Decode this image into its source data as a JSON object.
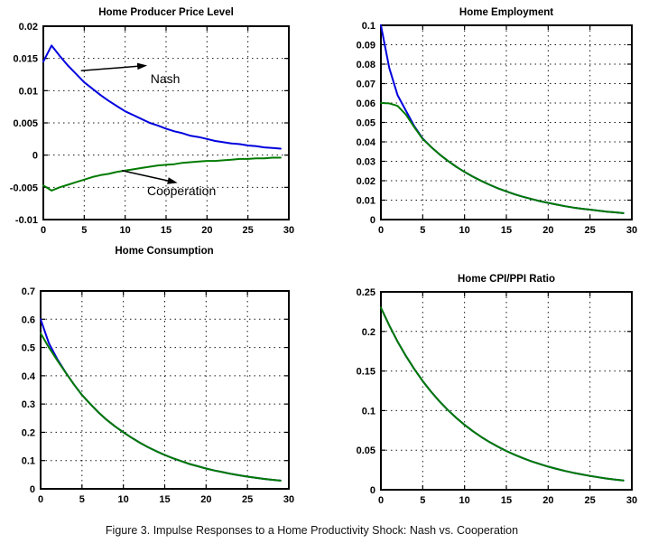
{
  "caption": "Figure 3. Impulse Responses to a Home Productivity Shock: Nash vs. Cooperation",
  "colors": {
    "nash": "#0000dd",
    "cooperation": "#007a00",
    "axis": "#000000"
  },
  "chart_data": [
    {
      "type": "line",
      "title": "Home Producer Price Level",
      "xlabel": "",
      "ylabel": "",
      "xlim": [
        0,
        30
      ],
      "ylim": [
        -0.01,
        0.02
      ],
      "xticks": [
        0,
        5,
        10,
        15,
        20,
        25,
        30
      ],
      "yticks": [
        0.02,
        0.015,
        0.01,
        0.005,
        0,
        -0.005,
        -0.01
      ],
      "grid": true,
      "legend": null,
      "x_start": 0,
      "x_step": 1,
      "series": [
        {
          "name": "Nash",
          "color": "#0000dd",
          "values": [
            0.0145,
            0.017,
            0.0154,
            0.0139,
            0.0126,
            0.0113,
            0.0103,
            0.0093,
            0.0084,
            0.0076,
            0.0068,
            0.0062,
            0.0056,
            0.005,
            0.0046,
            0.0041,
            0.0037,
            0.0034,
            0.003,
            0.0028,
            0.0025,
            0.0022,
            0.002,
            0.0018,
            0.0017,
            0.0015,
            0.0014,
            0.0012,
            0.0011,
            0.001
          ]
        },
        {
          "name": "Cooperation",
          "color": "#007a00",
          "values": [
            -0.0047,
            -0.0055,
            -0.005,
            -0.0046,
            -0.0042,
            -0.0038,
            -0.0034,
            -0.0031,
            -0.0029,
            -0.0026,
            -0.0024,
            -0.0022,
            -0.002,
            -0.0018,
            -0.0016,
            -0.0015,
            -0.0014,
            -0.0012,
            -0.0011,
            -0.001,
            -0.0009,
            -0.0009,
            -0.0008,
            -0.0007,
            -0.0006,
            -0.0006,
            -0.0005,
            -0.0005,
            -0.0004,
            -0.0004
          ]
        }
      ],
      "annotations": [
        {
          "label": "Nash",
          "arrow_tail": {
            "x": 4.6,
            "y": 0.0131
          },
          "arrow_head": {
            "x": 12.7,
            "y": 0.0139
          },
          "label_pos": {
            "x": 13.1,
            "y": 0.0128
          }
        },
        {
          "label": "Cooperation",
          "arrow_tail": {
            "x": 9.6,
            "y": -0.0024
          },
          "arrow_head": {
            "x": 16.4,
            "y": -0.0043
          },
          "label_pos": {
            "x": 12.68,
            "y": -0.00453
          }
        }
      ]
    },
    {
      "type": "line",
      "title": "Home Employment",
      "xlabel": "",
      "ylabel": "",
      "xlim": [
        0,
        30
      ],
      "ylim": [
        0,
        0.1
      ],
      "xticks": [
        0,
        5,
        10,
        15,
        20,
        25,
        30
      ],
      "yticks": [
        0.1,
        0.09,
        0.08,
        0.07,
        0.06,
        0.05,
        0.04,
        0.03,
        0.02,
        0.01,
        0
      ],
      "grid": true,
      "legend": null,
      "x_start": 0,
      "x_step": 1,
      "series": [
        {
          "name": "Nash",
          "color": "#0000dd",
          "values": [
            0.1,
            0.078,
            0.064,
            0.056,
            0.048,
            0.0417,
            0.0374,
            0.0336,
            0.0303,
            0.0272,
            0.0245,
            0.0221,
            0.0199,
            0.0179,
            0.0161,
            0.0145,
            0.013,
            0.0117,
            0.0106,
            0.0095,
            0.0086,
            0.0077,
            0.0069,
            0.0062,
            0.0056,
            0.0051,
            0.0046,
            0.0041,
            0.0037,
            0.0033
          ]
        },
        {
          "name": "Cooperation",
          "color": "#007a00",
          "values": [
            0.06,
            0.0598,
            0.0585,
            0.054,
            0.0475,
            0.0415,
            0.0374,
            0.0336,
            0.0303,
            0.0272,
            0.0245,
            0.0221,
            0.0199,
            0.0179,
            0.0161,
            0.0145,
            0.013,
            0.0117,
            0.0106,
            0.0095,
            0.0086,
            0.0077,
            0.0069,
            0.0062,
            0.0056,
            0.0051,
            0.0046,
            0.0041,
            0.0037,
            0.0033
          ]
        }
      ],
      "annotations": []
    },
    {
      "type": "line",
      "title": "Home Consumption",
      "xlabel": "",
      "ylabel": "",
      "xlim": [
        0,
        30
      ],
      "ylim": [
        0,
        0.7
      ],
      "xticks": [
        0,
        5,
        10,
        15,
        20,
        25,
        30
      ],
      "yticks": [
        0.7,
        0.6,
        0.5,
        0.4,
        0.3,
        0.2,
        0.1,
        0
      ],
      "grid": true,
      "legend": null,
      "x_start": 0,
      "x_step": 1,
      "series": [
        {
          "name": "Nash",
          "color": "#0000dd",
          "values": [
            0.6,
            0.515,
            0.46,
            0.413,
            0.37,
            0.332,
            0.3,
            0.27,
            0.244,
            0.221,
            0.2,
            0.181,
            0.163,
            0.147,
            0.133,
            0.12,
            0.108,
            0.098,
            0.088,
            0.08,
            0.072,
            0.065,
            0.059,
            0.053,
            0.048,
            0.043,
            0.039,
            0.035,
            0.032,
            0.029
          ]
        },
        {
          "name": "Cooperation",
          "color": "#007a00",
          "values": [
            0.55,
            0.5,
            0.455,
            0.412,
            0.37,
            0.332,
            0.3,
            0.27,
            0.244,
            0.221,
            0.2,
            0.181,
            0.163,
            0.147,
            0.133,
            0.12,
            0.108,
            0.098,
            0.088,
            0.08,
            0.072,
            0.065,
            0.059,
            0.053,
            0.048,
            0.043,
            0.039,
            0.035,
            0.032,
            0.029
          ]
        }
      ],
      "annotations": []
    },
    {
      "type": "line",
      "title": "Home CPI/PPI Ratio",
      "xlabel": "",
      "ylabel": "",
      "xlim": [
        0,
        30
      ],
      "ylim": [
        0,
        0.25
      ],
      "xticks": [
        0,
        5,
        10,
        15,
        20,
        25,
        30
      ],
      "yticks": [
        0.25,
        0.2,
        0.15,
        0.1,
        0.05,
        0
      ],
      "grid": true,
      "legend": null,
      "x_start": 0,
      "x_step": 1,
      "series": [
        {
          "name": "Nash",
          "color": "#0000dd",
          "values": [
            0.23,
            0.2075,
            0.1871,
            0.1688,
            0.1523,
            0.1373,
            0.1239,
            0.1117,
            0.1008,
            0.0909,
            0.082,
            0.074,
            0.0667,
            0.0602,
            0.0543,
            0.049,
            0.0442,
            0.0398,
            0.0359,
            0.0324,
            0.0292,
            0.0264,
            0.0238,
            0.0215,
            0.0194,
            0.0175,
            0.0158,
            0.0142,
            0.0128,
            0.0116
          ]
        },
        {
          "name": "Cooperation",
          "color": "#007a00",
          "values": [
            0.23,
            0.2075,
            0.1871,
            0.1688,
            0.1523,
            0.1373,
            0.1239,
            0.1117,
            0.1008,
            0.0909,
            0.082,
            0.074,
            0.0667,
            0.0602,
            0.0543,
            0.049,
            0.0442,
            0.0398,
            0.0359,
            0.0324,
            0.0292,
            0.0264,
            0.0238,
            0.0215,
            0.0194,
            0.0175,
            0.0158,
            0.0142,
            0.0128,
            0.0116
          ]
        }
      ],
      "annotations": []
    }
  ]
}
